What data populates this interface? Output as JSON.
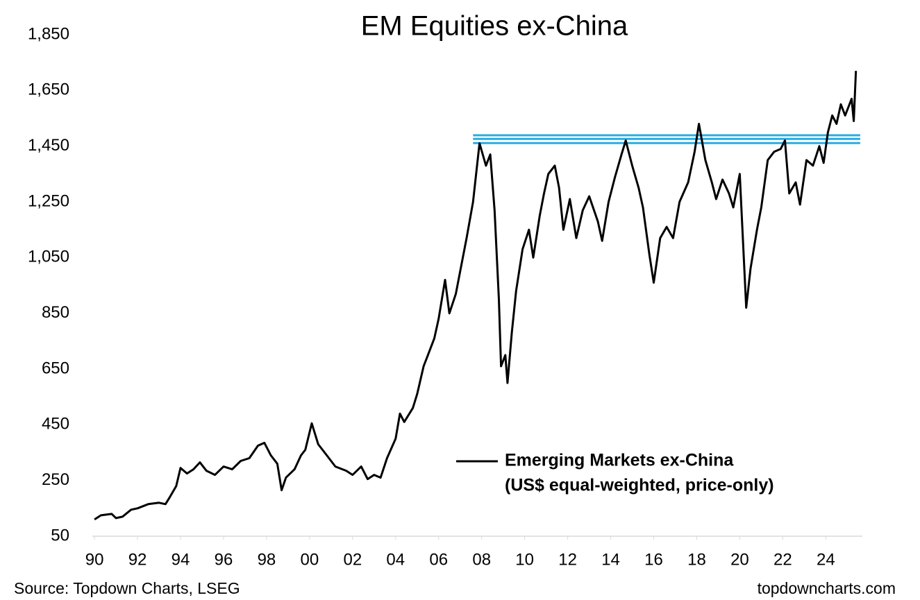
{
  "chart_data": {
    "type": "line",
    "title": "EM Equities ex-China",
    "source": "Source: Topdown Charts, LSEG",
    "watermark": "topdowncharts.com",
    "legend_note": "(US$ equal-weighted, price-only)",
    "xlim": [
      1989.9,
      2025.7
    ],
    "ylim": [
      50,
      1850
    ],
    "yticks": [
      50,
      250,
      450,
      650,
      850,
      {
        "value": 1050,
        "label": "1,050"
      },
      {
        "value": 1250,
        "label": "1,250"
      },
      {
        "value": 1450,
        "label": "1,450"
      },
      {
        "value": 1650,
        "label": "1,650"
      },
      {
        "value": 1850,
        "label": "1,850"
      }
    ],
    "xticks": [
      {
        "value": 1990,
        "label": "90"
      },
      {
        "value": 1992,
        "label": "92"
      },
      {
        "value": 1994,
        "label": "94"
      },
      {
        "value": 1996,
        "label": "96"
      },
      {
        "value": 1998,
        "label": "98"
      },
      {
        "value": 2000,
        "label": "00"
      },
      {
        "value": 2002,
        "label": "02"
      },
      {
        "value": 2004,
        "label": "04"
      },
      {
        "value": 2006,
        "label": "06"
      },
      {
        "value": 2008,
        "label": "08"
      },
      {
        "value": 2010,
        "label": "10"
      },
      {
        "value": 2012,
        "label": "12"
      },
      {
        "value": 2014,
        "label": "14"
      },
      {
        "value": 2016,
        "label": "16"
      },
      {
        "value": 2018,
        "label": "18"
      },
      {
        "value": 2020,
        "label": "20"
      },
      {
        "value": 2022,
        "label": "22"
      },
      {
        "value": 2024,
        "label": "24"
      }
    ],
    "reference_lines": {
      "values": [
        1489,
        1476,
        1461
      ],
      "x_start": 2007.6,
      "x_end": 2025.6,
      "color": "#29abe2"
    },
    "series": [
      {
        "name": "Emerging Markets ex-China",
        "color": "#000000",
        "x": [
          1990.0,
          1990.3,
          1990.8,
          1991.0,
          1991.3,
          1991.7,
          1992.0,
          1992.5,
          1993.0,
          1993.3,
          1993.5,
          1993.8,
          1994.0,
          1994.3,
          1994.6,
          1994.9,
          1995.2,
          1995.6,
          1996.0,
          1996.4,
          1996.8,
          1997.2,
          1997.6,
          1997.9,
          1998.2,
          1998.5,
          1998.7,
          1998.9,
          1999.3,
          1999.6,
          1999.8,
          2000.1,
          2000.4,
          2000.8,
          2001.2,
          2001.7,
          2002.0,
          2002.4,
          2002.7,
          2003.0,
          2003.3,
          2003.6,
          2004.0,
          2004.2,
          2004.4,
          2004.8,
          2005.0,
          2005.3,
          2005.5,
          2005.8,
          2006.0,
          2006.3,
          2006.5,
          2006.8,
          2007.0,
          2007.3,
          2007.6,
          2007.9,
          2008.2,
          2008.4,
          2008.6,
          2008.8,
          2008.9,
          2009.1,
          2009.2,
          2009.4,
          2009.6,
          2009.9,
          2010.2,
          2010.4,
          2010.7,
          2010.9,
          2011.1,
          2011.4,
          2011.6,
          2011.8,
          2012.1,
          2012.4,
          2012.7,
          2013.0,
          2013.4,
          2013.6,
          2013.9,
          2014.2,
          2014.5,
          2014.7,
          2015.0,
          2015.3,
          2015.5,
          2015.8,
          2016.0,
          2016.3,
          2016.6,
          2016.9,
          2017.2,
          2017.6,
          2017.9,
          2018.1,
          2018.4,
          2018.7,
          2018.9,
          2019.2,
          2019.5,
          2019.7,
          2020.0,
          2020.3,
          2020.5,
          2020.8,
          2021.0,
          2021.3,
          2021.6,
          2021.9,
          2022.1,
          2022.3,
          2022.6,
          2022.8,
          2023.1,
          2023.4,
          2023.7,
          2023.9,
          2024.1,
          2024.3,
          2024.5,
          2024.7,
          2024.9,
          2025.0,
          2025.2,
          2025.3,
          2025.4
        ],
        "values": [
          110,
          125,
          130,
          115,
          120,
          145,
          150,
          165,
          170,
          165,
          190,
          230,
          295,
          275,
          290,
          315,
          285,
          270,
          300,
          290,
          320,
          330,
          375,
          385,
          340,
          310,
          215,
          260,
          290,
          340,
          360,
          455,
          380,
          340,
          300,
          285,
          270,
          300,
          255,
          270,
          260,
          330,
          400,
          490,
          460,
          510,
          560,
          660,
          700,
          760,
          830,
          970,
          850,
          920,
          1000,
          1120,
          1250,
          1460,
          1380,
          1420,
          1220,
          900,
          660,
          700,
          600,
          780,
          930,
          1080,
          1150,
          1050,
          1200,
          1280,
          1350,
          1380,
          1300,
          1150,
          1260,
          1120,
          1220,
          1270,
          1180,
          1110,
          1250,
          1340,
          1420,
          1470,
          1380,
          1300,
          1230,
          1060,
          960,
          1120,
          1160,
          1120,
          1250,
          1320,
          1430,
          1530,
          1400,
          1320,
          1260,
          1330,
          1280,
          1230,
          1350,
          870,
          1010,
          1150,
          1230,
          1400,
          1430,
          1440,
          1470,
          1280,
          1320,
          1240,
          1400,
          1380,
          1450,
          1390,
          1500,
          1560,
          1530,
          1600,
          1560,
          1580,
          1620,
          1540,
          1720
        ]
      }
    ]
  }
}
